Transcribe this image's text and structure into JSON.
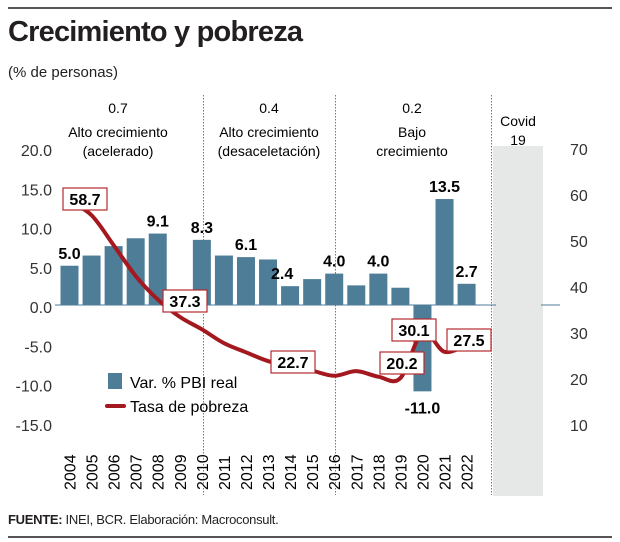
{
  "title": "Crecimiento y pobreza",
  "subtitle": "(% de personas)",
  "source_label": "FUENTE:",
  "source_text": " INEI, BCR. Elaboración: Macroconsult.",
  "colors": {
    "bars": "#4e7d98",
    "line": "#a3191f",
    "label_border": "#b52a2f",
    "shade": "#e6e8e7"
  },
  "chart_data": {
    "type": "bar+line",
    "title": "Crecimiento y pobreza",
    "subtitle": "(% de personas)",
    "categories": [
      "2004",
      "2005",
      "2006",
      "2007",
      "2008",
      "2009",
      "2010",
      "2011",
      "2012",
      "2013",
      "2014",
      "2015",
      "2016",
      "2017",
      "2018",
      "2019",
      "2020",
      "2021",
      "2022"
    ],
    "series": [
      {
        "name": "Var. % PBI real",
        "type": "bar",
        "axis": "left",
        "values": [
          5.0,
          6.3,
          7.5,
          8.5,
          9.1,
          1.1,
          8.3,
          6.3,
          6.1,
          5.8,
          2.4,
          3.3,
          4.0,
          2.5,
          4.0,
          2.2,
          -11.0,
          13.5,
          2.7
        ],
        "labeled": [
          "5.0",
          null,
          null,
          null,
          "9.1",
          null,
          "8.3",
          null,
          "6.1",
          null,
          "2.4",
          null,
          "4.0",
          null,
          "4.0",
          null,
          "-11.0",
          "13.5",
          "2.7"
        ]
      },
      {
        "name": "Tasa de pobreza",
        "type": "line",
        "axis": "right",
        "values": [
          58.7,
          55.6,
          49.1,
          42.4,
          37.3,
          33.5,
          30.8,
          27.8,
          25.8,
          23.9,
          22.7,
          21.8,
          20.7,
          21.7,
          20.5,
          20.2,
          30.1,
          25.9,
          27.5
        ],
        "labeled": [
          "58.7",
          null,
          null,
          null,
          "37.3",
          null,
          null,
          null,
          null,
          null,
          "22.7",
          null,
          null,
          null,
          null,
          "20.2",
          "30.1",
          null,
          "27.5"
        ]
      }
    ],
    "left_axis": {
      "ylim": [
        -15,
        20
      ],
      "ticks": [
        "20.0",
        "15.0",
        "10.0",
        "5.0",
        "0.0",
        "-5.0",
        "-10.0",
        "-15.0"
      ]
    },
    "right_axis": {
      "ylim": [
        10,
        70
      ],
      "ticks": [
        "70",
        "60",
        "50",
        "40",
        "30",
        "20",
        "10"
      ]
    },
    "periods": [
      {
        "value": "0.7",
        "label1": "Alto crecimiento",
        "label2": "(acelerado)"
      },
      {
        "value": "0.4",
        "label1": "Alto crecimiento",
        "label2": "(desaceletación)"
      },
      {
        "value": "0.2",
        "label1": "Bajo",
        "label2": "crecimiento"
      },
      {
        "value": "",
        "label1": "Covid",
        "label2": "19"
      }
    ],
    "legend": {
      "position": "bottom-left",
      "bar": "Var. % PBI real",
      "line": "Tasa de pobreza"
    },
    "grid": false
  }
}
